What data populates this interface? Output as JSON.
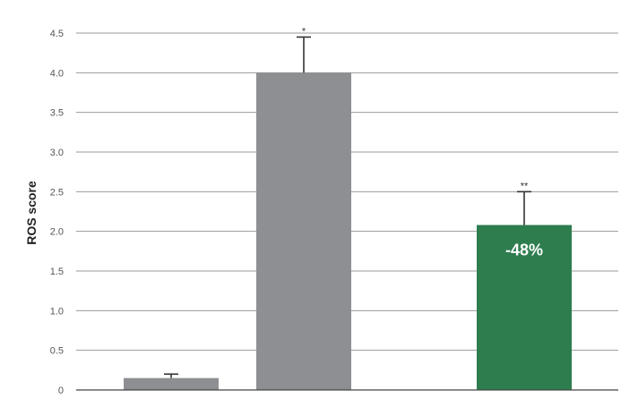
{
  "chart_data": {
    "type": "bar",
    "ylabel": "ROS score",
    "xlabel": "",
    "ylim": [
      0,
      4.5
    ],
    "yticks": [
      "0",
      "0.5",
      "1.0",
      "1.5",
      "2.0",
      "2.5",
      "3.0",
      "3.5",
      "4.0",
      "4.5"
    ],
    "grid": true,
    "bars": [
      {
        "value": 0.15,
        "error": 0.05,
        "significance": "",
        "label": "",
        "color": "#8d8f92"
      },
      {
        "value": 4.0,
        "error": 0.45,
        "significance": "*",
        "label": "",
        "color": "#8d8f92"
      },
      {
        "value": 2.08,
        "error": 0.42,
        "significance": "**",
        "label": "-48%",
        "color": "#2e7d4f"
      }
    ]
  }
}
